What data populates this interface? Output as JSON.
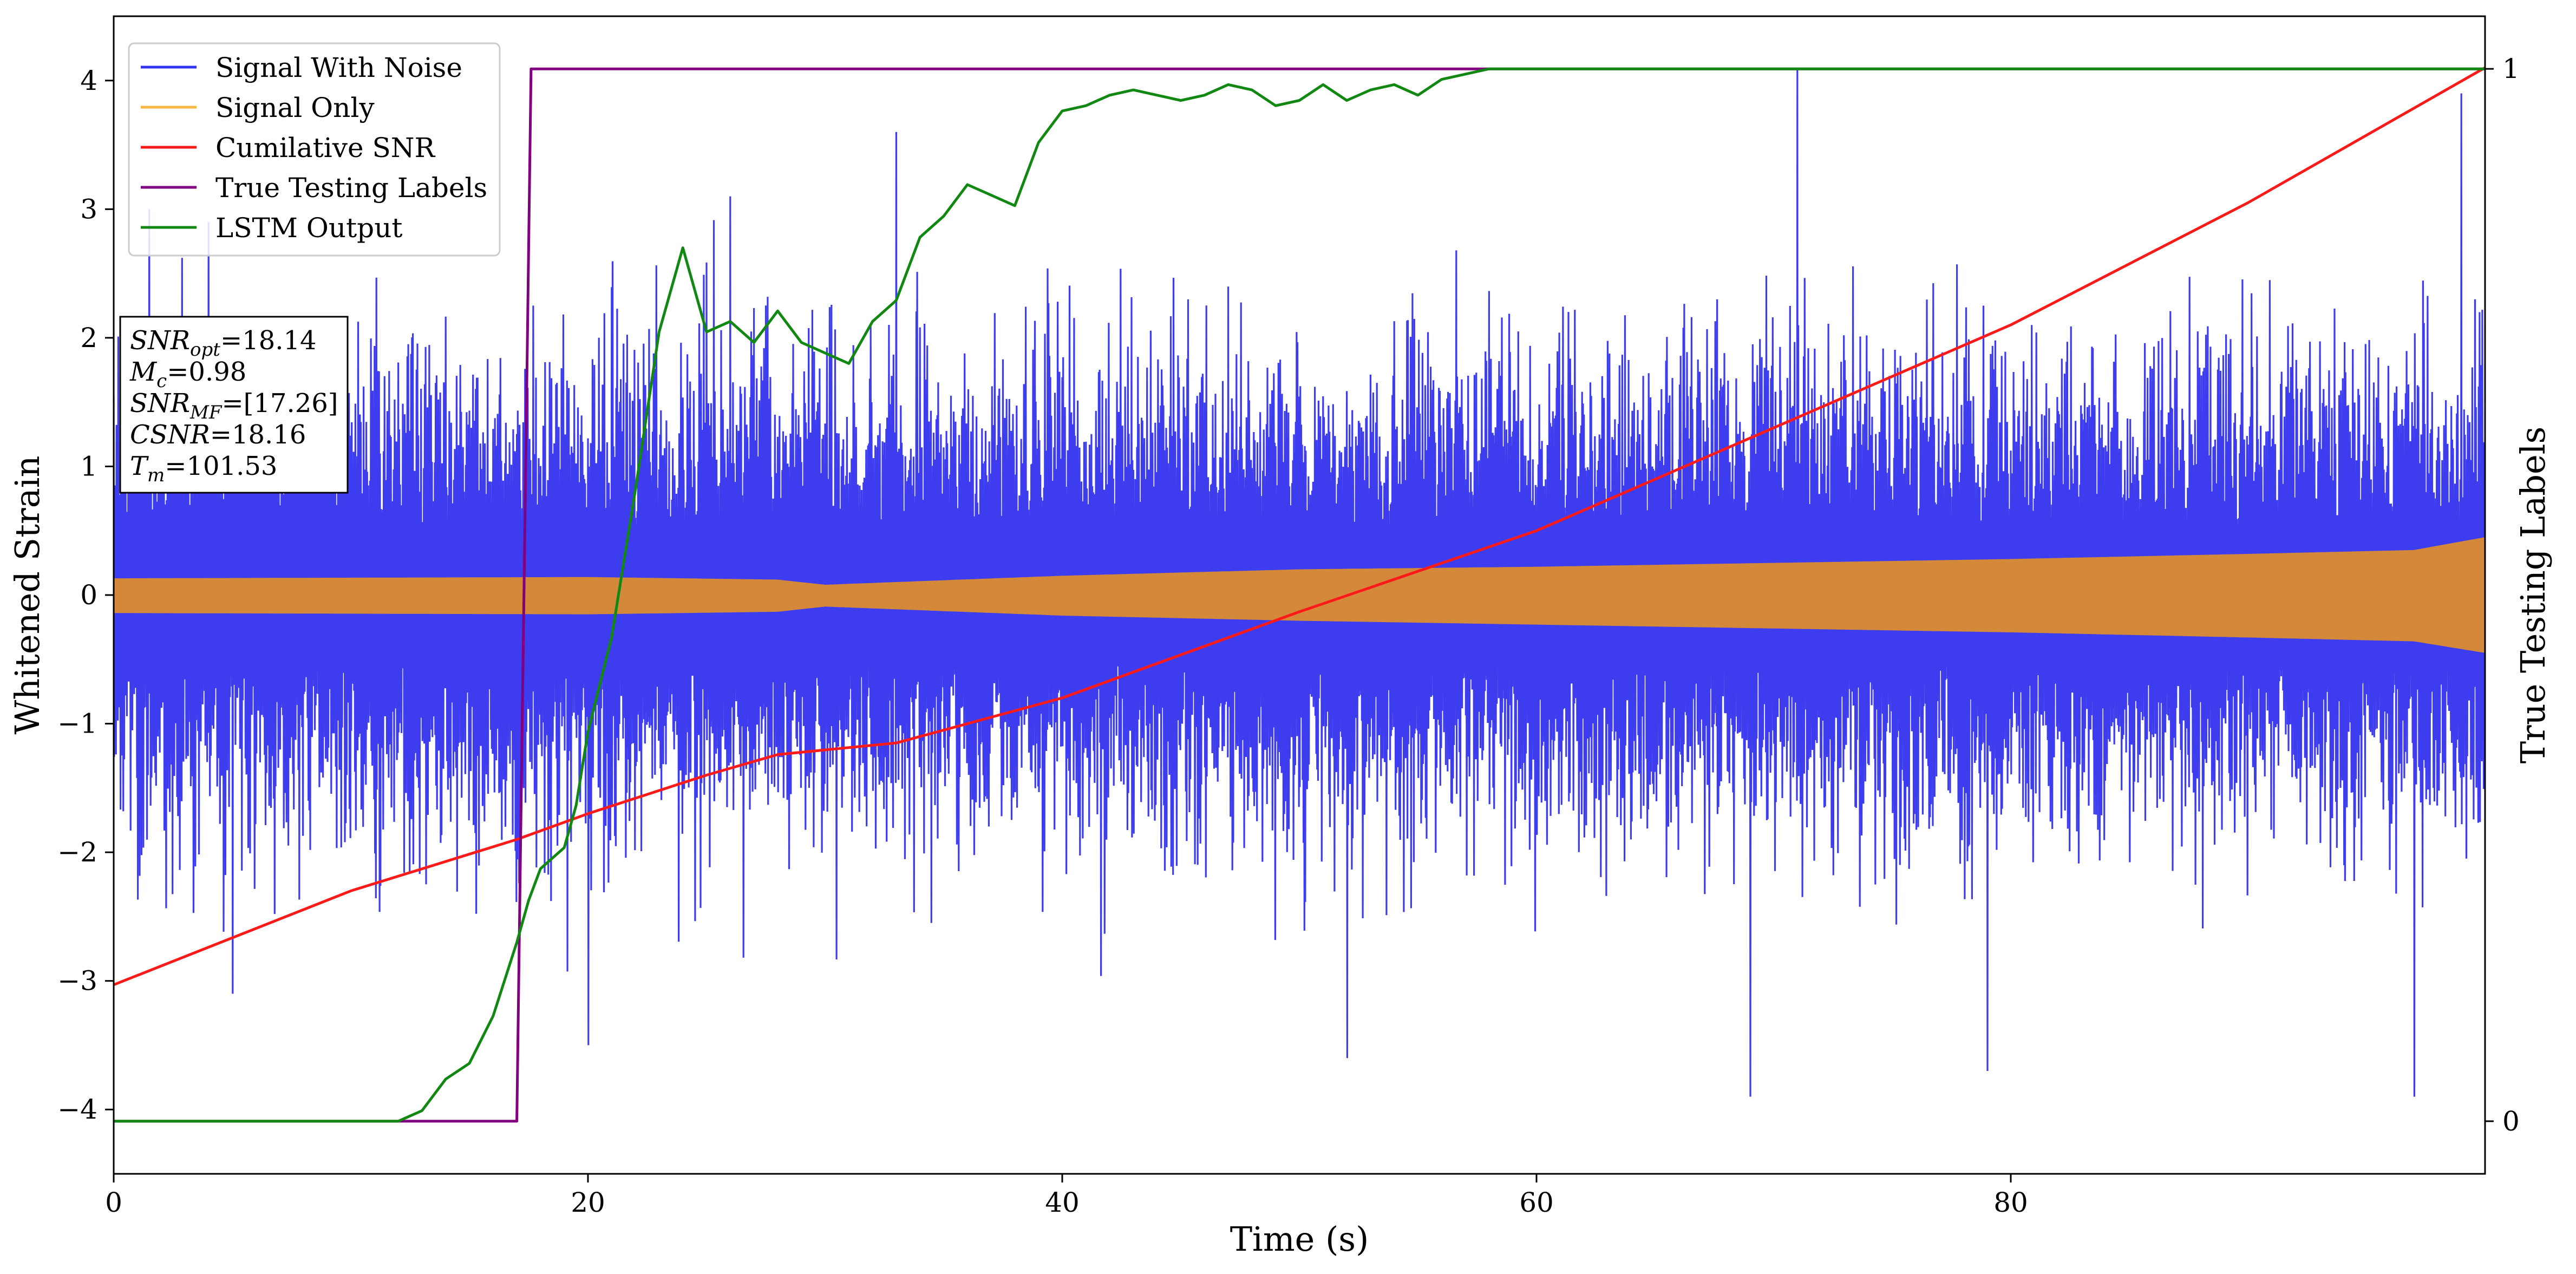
{
  "chart_data": {
    "type": "line",
    "xlabel": "Time (s)",
    "ylabel": "Whitened Strain",
    "y2label": "True Testing Labels",
    "xlim": [
      0,
      100
    ],
    "ylim": [
      -4.5,
      4.5
    ],
    "y2lim": [
      -0.05,
      1.05
    ],
    "xticks": [
      0,
      20,
      40,
      60,
      80
    ],
    "yticks": [
      -4,
      -3,
      -2,
      -1,
      0,
      1,
      2,
      3,
      4
    ],
    "y2ticks": [
      0,
      1
    ],
    "legend_position": "top-left",
    "grid": false,
    "legend": [
      {
        "label": "Signal With Noise",
        "color": "#3333ee"
      },
      {
        "label": "Signal Only",
        "color": "#f5b642"
      },
      {
        "label": "Cumilative SNR",
        "color": "#ff1a1a"
      },
      {
        "label": "True Testing Labels",
        "color": "#800080"
      },
      {
        "label": "LSTM Output",
        "color": "#118811"
      }
    ],
    "annotation": [
      {
        "base": "SNR",
        "sub": "opt",
        "rest": "=18.14"
      },
      {
        "base": "M",
        "sub": "c",
        "rest": "=0.98"
      },
      {
        "base": "SNR",
        "sub": "MF",
        "rest": "=[17.26]"
      },
      {
        "base": "CSNR",
        "sub": "",
        "rest": "=18.16"
      },
      {
        "base": "T",
        "sub": "m",
        "rest": "=101.53"
      }
    ],
    "series": [
      {
        "name": "Signal With Noise",
        "axis": "left",
        "color": "#3333ee",
        "kind": "noise",
        "x_range": [
          0,
          100
        ],
        "envelope_upper_typical": 1.5,
        "envelope_lower_typical": -1.6,
        "peaks": [
          [
            1.5,
            3.0
          ],
          [
            4.0,
            2.9
          ],
          [
            26.0,
            3.1
          ],
          [
            33.0,
            3.6
          ],
          [
            71.0,
            4.1
          ],
          [
            99.0,
            3.9
          ]
        ],
        "troughs": [
          [
            5.0,
            -3.1
          ],
          [
            20.0,
            -3.5
          ],
          [
            52.0,
            -3.6
          ],
          [
            69.0,
            -3.9
          ],
          [
            79.0,
            -3.7
          ],
          [
            97.0,
            -3.9
          ]
        ]
      },
      {
        "name": "Signal Only",
        "axis": "left",
        "color": "#f5b642",
        "kind": "band",
        "x": [
          0,
          20,
          28,
          30,
          40,
          50,
          60,
          70,
          80,
          90,
          97,
          100
        ],
        "upper": [
          0.13,
          0.14,
          0.12,
          0.08,
          0.15,
          0.2,
          0.22,
          0.25,
          0.28,
          0.32,
          0.35,
          0.45
        ],
        "lower": [
          -0.14,
          -0.15,
          -0.13,
          -0.09,
          -0.16,
          -0.2,
          -0.23,
          -0.26,
          -0.29,
          -0.33,
          -0.36,
          -0.45
        ]
      },
      {
        "name": "Cumilative SNR",
        "axis": "left",
        "color": "#ff1a1a",
        "x": [
          0,
          10,
          17,
          20,
          25,
          28,
          33,
          40,
          50,
          60,
          70,
          80,
          90,
          100
        ],
        "y": [
          -3.03,
          -2.3,
          -1.9,
          -1.7,
          -1.4,
          -1.24,
          -1.15,
          -0.8,
          -0.13,
          0.5,
          1.3,
          2.1,
          3.05,
          4.1
        ]
      },
      {
        "name": "True Testing Labels",
        "axis": "right",
        "color": "#800080",
        "x": [
          0,
          17.0,
          17.6,
          100
        ],
        "y": [
          0,
          0,
          1,
          1
        ]
      },
      {
        "name": "LSTM Output",
        "axis": "right",
        "color": "#118811",
        "x": [
          0,
          12,
          13,
          14,
          15,
          16,
          17,
          17.5,
          18,
          19,
          19.5,
          20,
          21,
          22,
          23,
          24,
          25,
          26,
          27,
          28,
          29,
          30,
          31,
          32,
          33,
          34,
          35,
          36,
          37,
          38,
          39,
          40,
          41,
          42,
          43,
          44,
          45,
          46,
          47,
          48,
          49,
          50,
          51,
          52,
          53,
          54,
          55,
          56,
          57,
          58,
          60,
          100
        ],
        "y": [
          0,
          0,
          0.01,
          0.04,
          0.055,
          0.1,
          0.17,
          0.21,
          0.24,
          0.26,
          0.3,
          0.37,
          0.46,
          0.6,
          0.75,
          0.83,
          0.75,
          0.76,
          0.74,
          0.77,
          0.74,
          0.73,
          0.72,
          0.76,
          0.78,
          0.84,
          0.86,
          0.89,
          0.88,
          0.87,
          0.93,
          0.96,
          0.965,
          0.975,
          0.98,
          0.975,
          0.97,
          0.975,
          0.985,
          0.98,
          0.965,
          0.97,
          0.985,
          0.97,
          0.98,
          0.985,
          0.975,
          0.99,
          0.995,
          1.0,
          1.0,
          1.0
        ]
      }
    ]
  }
}
